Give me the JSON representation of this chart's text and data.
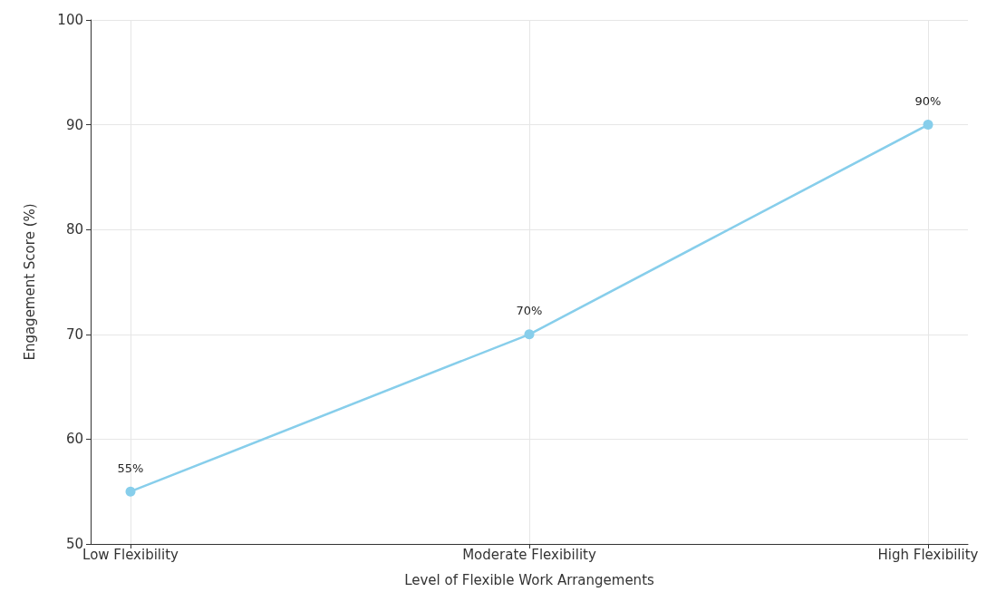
{
  "chart_data": {
    "type": "line",
    "xlabel": "Level of Flexible Work Arrangements",
    "ylabel": "Engagement Score (%)",
    "categories": [
      "Low Flexibility",
      "Moderate Flexibility",
      "High Flexibility"
    ],
    "series": [
      {
        "color": "#87ceeb",
        "values": [
          55,
          70,
          90
        ],
        "value_labels": [
          "55%",
          "70%",
          "90%"
        ]
      }
    ],
    "ylim": [
      50,
      100
    ],
    "yticks": [
      50,
      60,
      70,
      80,
      90,
      100
    ],
    "grid": true,
    "marker": "circle",
    "line_style": "solid"
  }
}
